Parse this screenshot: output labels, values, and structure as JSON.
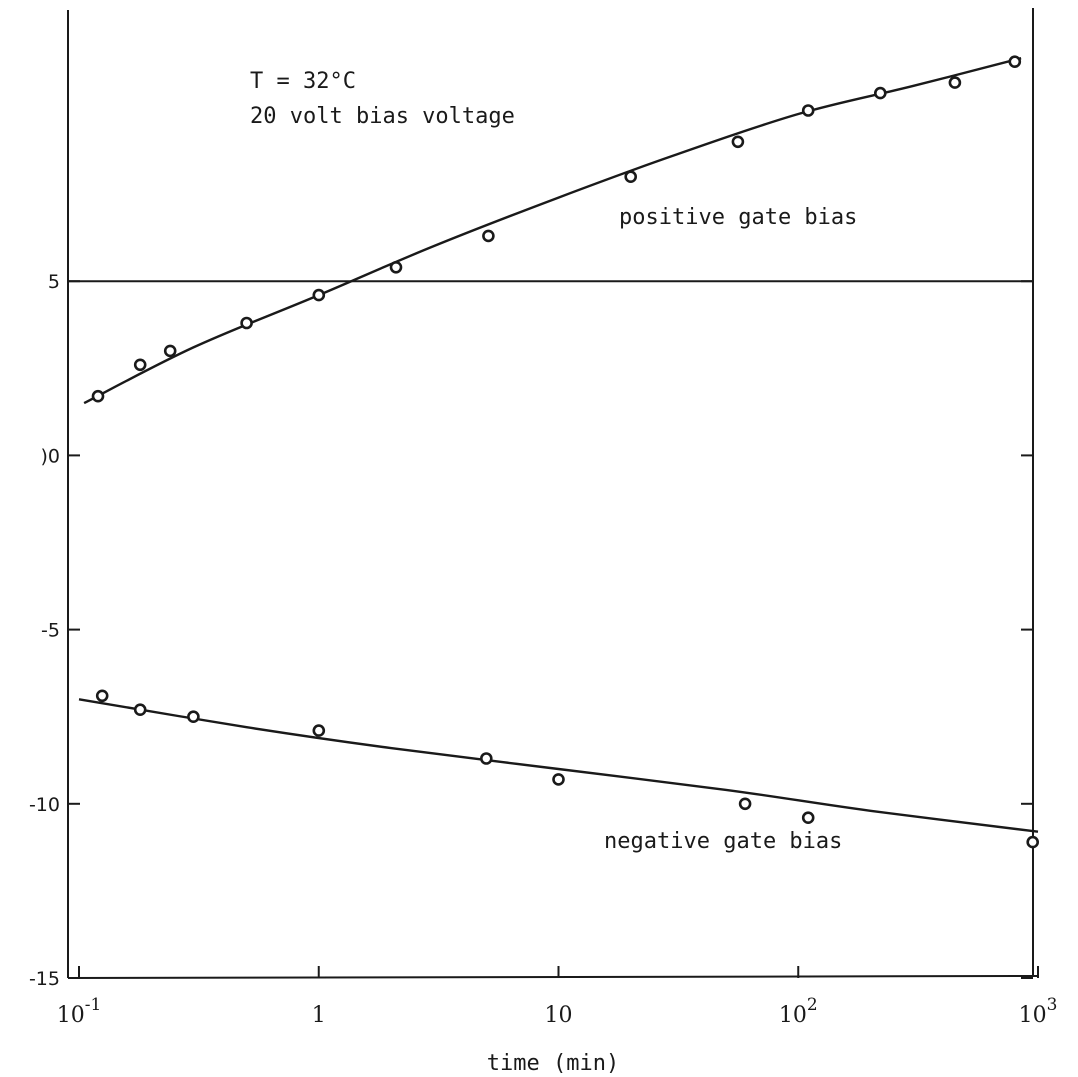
{
  "chart_data": {
    "type": "scatter",
    "title": "",
    "xlabel": "time (min)",
    "ylabel": "",
    "x_scale": "log",
    "xlim": [
      0.1,
      1000
    ],
    "ylim": [
      -15,
      10
    ],
    "x_ticks": [
      {
        "value": 0.1,
        "base": "10",
        "exp": "-1"
      },
      {
        "value": 1,
        "base": "1",
        "exp": ""
      },
      {
        "value": 10,
        "base": "10",
        "exp": ""
      },
      {
        "value": 100,
        "base": "10",
        "exp": "2"
      },
      {
        "value": 1000,
        "base": "10",
        "exp": "3"
      }
    ],
    "y_ticks": [
      {
        "value": 5,
        "label": "5"
      },
      {
        "value": 0,
        "label": ")0"
      },
      {
        "value": -5,
        "label": "-5"
      },
      {
        "value": -10,
        "label": "-10"
      },
      {
        "value": -15,
        "label": "-15"
      }
    ],
    "reference_line_y": 5,
    "annotations": [
      "T = 32°C",
      "20 volt bias voltage"
    ],
    "grid": false,
    "colors": {
      "ink": "#1a1a1a",
      "background": "#ffffff"
    },
    "series": [
      {
        "name": "positive gate bias",
        "points": [
          {
            "x": 0.12,
            "y": 1.7
          },
          {
            "x": 0.18,
            "y": 2.6
          },
          {
            "x": 0.24,
            "y": 3.0
          },
          {
            "x": 0.5,
            "y": 3.8
          },
          {
            "x": 1.0,
            "y": 4.6
          },
          {
            "x": 2.1,
            "y": 5.4
          },
          {
            "x": 5.1,
            "y": 6.3
          },
          {
            "x": 20,
            "y": 8.0
          },
          {
            "x": 56,
            "y": 9.0
          },
          {
            "x": 110,
            "y": 9.9
          },
          {
            "x": 220,
            "y": 10.4
          },
          {
            "x": 450,
            "y": 10.7
          },
          {
            "x": 800,
            "y": 11.3
          }
        ],
        "fit": [
          {
            "x": 0.105,
            "y": 1.5
          },
          {
            "x": 0.3,
            "y": 3.1
          },
          {
            "x": 1.0,
            "y": 4.6
          },
          {
            "x": 3.0,
            "y": 6.0
          },
          {
            "x": 10,
            "y": 7.4
          },
          {
            "x": 30,
            "y": 8.6
          },
          {
            "x": 100,
            "y": 9.8
          },
          {
            "x": 300,
            "y": 10.6
          },
          {
            "x": 850,
            "y": 11.4
          }
        ]
      },
      {
        "name": "negative gate bias",
        "points": [
          {
            "x": 0.125,
            "y": -6.9
          },
          {
            "x": 0.18,
            "y": -7.3
          },
          {
            "x": 0.3,
            "y": -7.5
          },
          {
            "x": 1.0,
            "y": -7.9
          },
          {
            "x": 5.0,
            "y": -8.7
          },
          {
            "x": 10,
            "y": -9.3
          },
          {
            "x": 60,
            "y": -10.0
          },
          {
            "x": 110,
            "y": -10.4
          },
          {
            "x": 950,
            "y": -11.1
          }
        ],
        "fit": [
          {
            "x": 0.1,
            "y": -7.0
          },
          {
            "x": 0.5,
            "y": -7.8
          },
          {
            "x": 2.0,
            "y": -8.4
          },
          {
            "x": 10,
            "y": -9.0
          },
          {
            "x": 50,
            "y": -9.6
          },
          {
            "x": 200,
            "y": -10.2
          },
          {
            "x": 1000,
            "y": -10.8
          }
        ]
      }
    ]
  }
}
